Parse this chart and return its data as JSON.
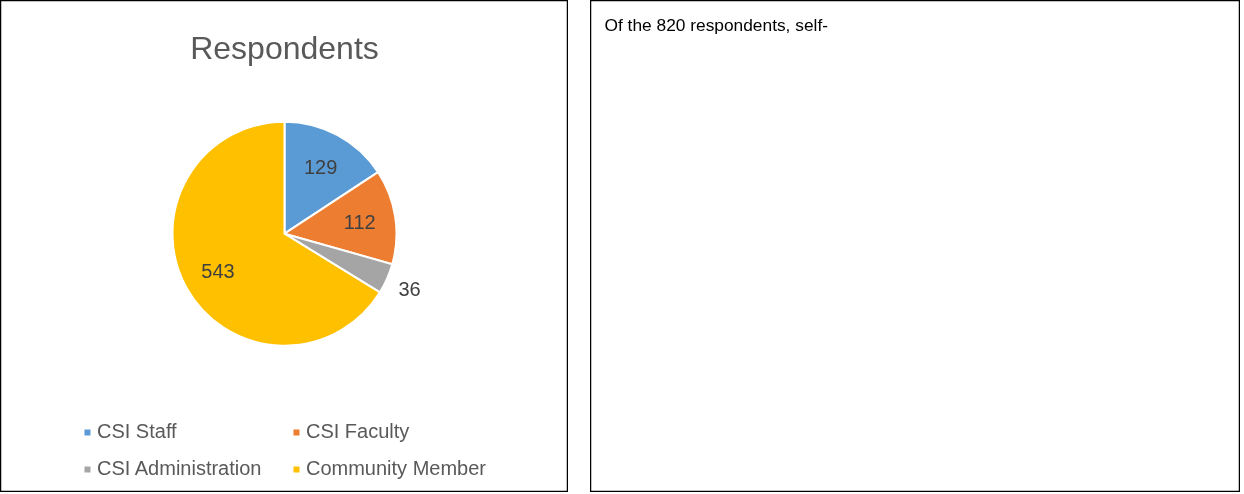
{
  "chart_data": [
    {
      "type": "pie",
      "title": "Respondents",
      "categories": [
        "CSI Staff",
        "CSI Faculty",
        "CSI Administration",
        "Community Member"
      ],
      "values": [
        129,
        112,
        36,
        543
      ],
      "colors": [
        "#5b9bd5",
        "#ed7d31",
        "#a5a5a5",
        "#ffc000"
      ],
      "data_labels": true,
      "legend": "bottom"
    },
    {
      "type": "other",
      "annotations": [
        "Of the 820 respondents, self-"
      ]
    }
  ]
}
